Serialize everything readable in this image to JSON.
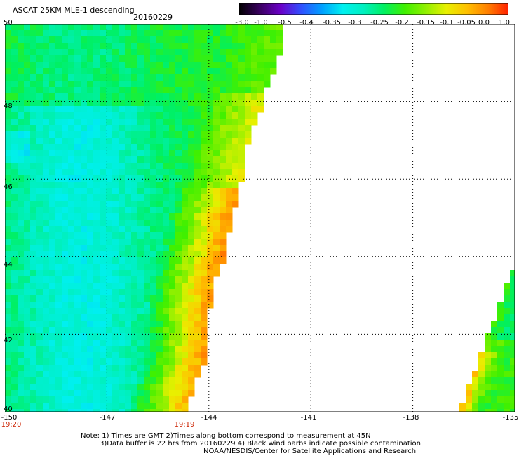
{
  "header": {
    "title": "ASCAT 25KM MLE-1 descending",
    "date": "20160229"
  },
  "colorbar": {
    "labels": [
      "-3.0",
      "-1.0",
      "-0.5",
      "-0.4",
      "-0.35",
      "-0.3",
      "-0.25",
      "-0.2",
      "-0.15",
      "-0.1",
      "-0.05",
      "0.0",
      "1.0"
    ],
    "colors": [
      "#000000",
      "#3a0060",
      "#6a00c8",
      "#3050ff",
      "#00a0ff",
      "#00f0f0",
      "#00f0c0",
      "#00f060",
      "#40f000",
      "#90f000",
      "#e8f000",
      "#ffc000",
      "#ff8000",
      "#ff2000"
    ]
  },
  "map": {
    "lat_labels": [
      "50",
      "48",
      "46",
      "44",
      "42",
      "40"
    ],
    "lon_labels": [
      "-150",
      "-147",
      "-144",
      "-141",
      "-138",
      "-135"
    ],
    "time_labels": [
      "19:20",
      "19:19"
    ],
    "lon_range": [
      -150,
      -135
    ],
    "lat_range": [
      40,
      50
    ]
  },
  "notes": {
    "line1": "Note: 1) Times are GMT 2)Times along bottom correspond to measurement at 45N",
    "line2": "3)Data buffer is 22 hrs from 20160229 4) Black wind barbs indicate possible contamination",
    "line3": "NOAA/NESDIS/Center for Satellite Applications and Research"
  }
}
